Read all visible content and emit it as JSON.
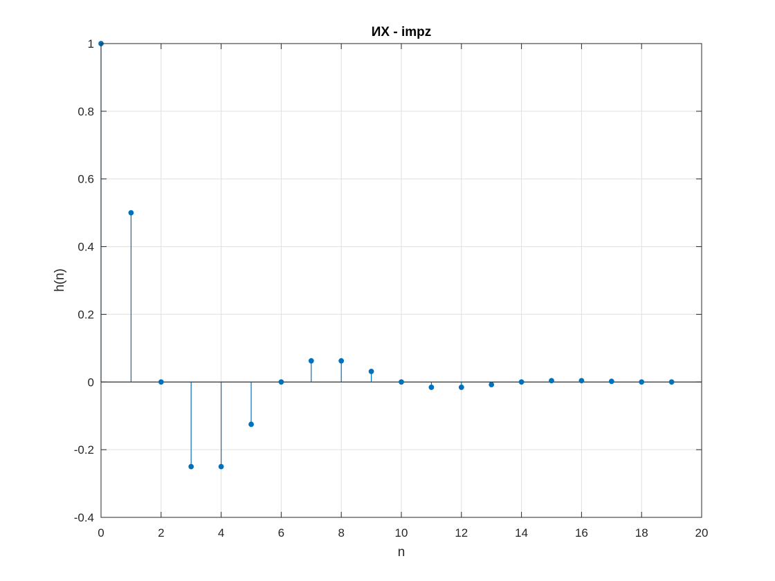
{
  "chart_data": {
    "type": "stem",
    "title": "ИХ - impz",
    "xlabel": "n",
    "ylabel": "h(n)",
    "xlim": [
      0,
      20
    ],
    "ylim": [
      -0.4,
      1
    ],
    "xticks": [
      0,
      2,
      4,
      6,
      8,
      10,
      12,
      14,
      16,
      18,
      20
    ],
    "xtick_labels": [
      "0",
      "2",
      "4",
      "6",
      "8",
      "10",
      "12",
      "14",
      "16",
      "18",
      "20"
    ],
    "yticks": [
      -0.4,
      -0.2,
      0,
      0.2,
      0.4,
      0.6,
      0.8,
      1
    ],
    "ytick_labels": [
      "-0.4",
      "-0.2",
      "0",
      "0.2",
      "0.4",
      "0.6",
      "0.8",
      "1"
    ],
    "grid": true,
    "series": [
      {
        "name": "h(n)",
        "x": [
          0,
          1,
          2,
          3,
          4,
          5,
          6,
          7,
          8,
          9,
          10,
          11,
          12,
          13,
          14,
          15,
          16,
          17,
          18,
          19
        ],
        "values": [
          1,
          0.5,
          0,
          -0.25,
          -0.25,
          -0.125,
          0,
          0.0625,
          0.0625,
          0.03125,
          0,
          -0.015625,
          -0.015625,
          -0.0078125,
          0,
          0.00390625,
          0.00390625,
          0.001953125,
          0,
          0
        ]
      }
    ],
    "colors": {
      "stem": "#0072BD",
      "axis": "#262626",
      "grid": "#dfdfdf",
      "baseline": "#000000"
    }
  }
}
